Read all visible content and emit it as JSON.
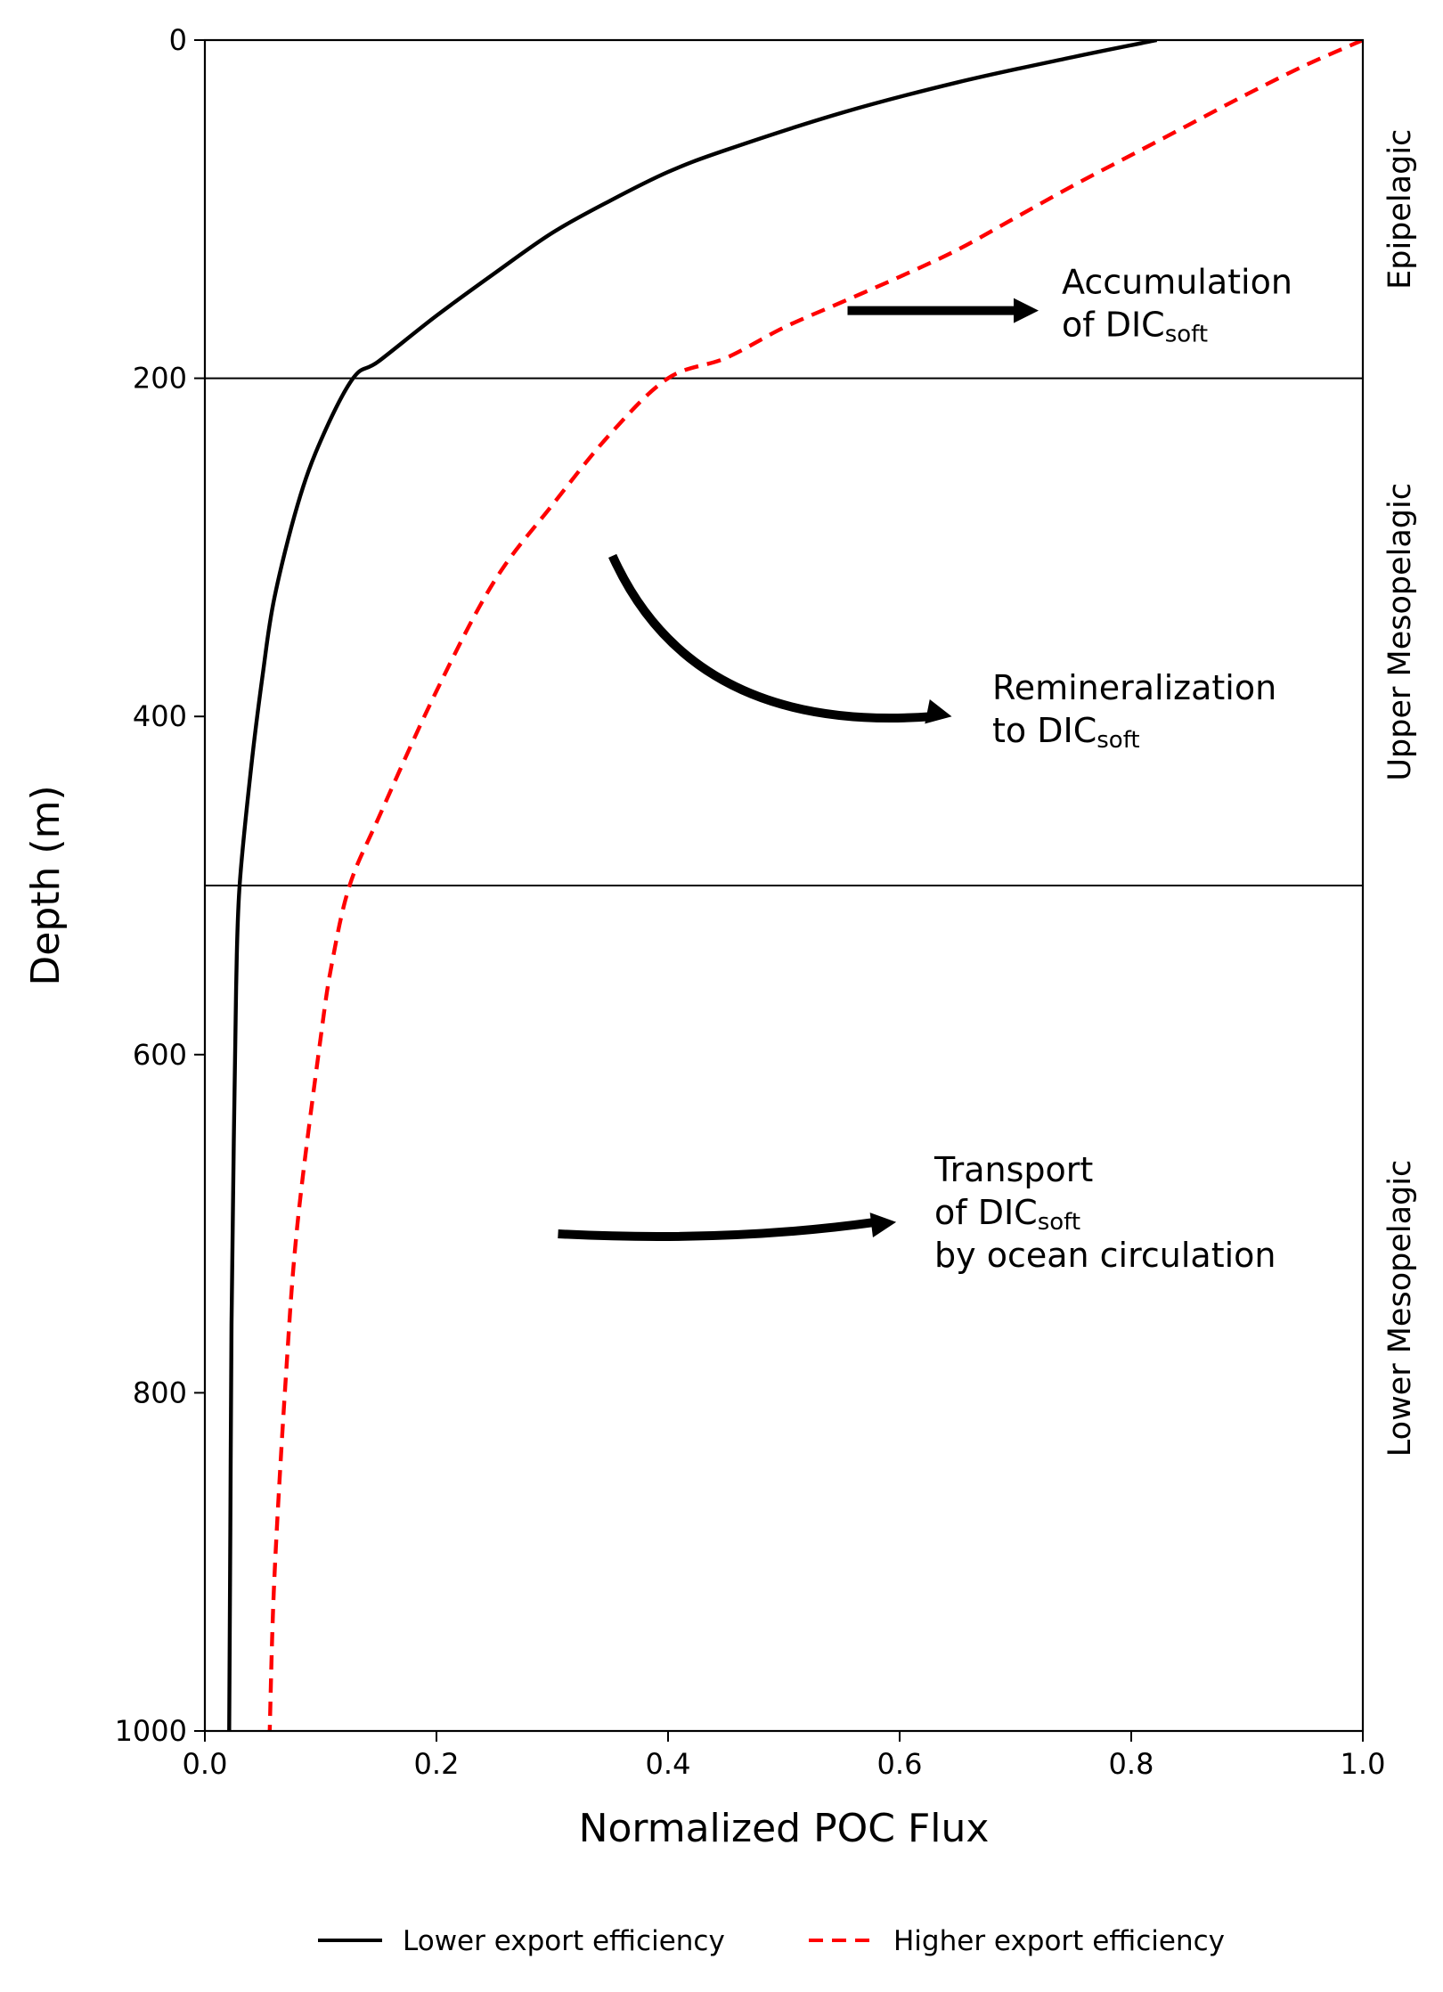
{
  "chart_data": {
    "type": "line",
    "xlabel": "Normalized POC Flux",
    "ylabel": "Depth (m)",
    "xlim": [
      0.0,
      1.0
    ],
    "ylim": [
      1000,
      0
    ],
    "y_inverted": true,
    "grid": false,
    "x_ticks": [
      "0.0",
      "0.2",
      "0.4",
      "0.6",
      "0.8",
      "1.0"
    ],
    "y_ticks": [
      "0",
      "200",
      "400",
      "600",
      "800",
      "1000"
    ],
    "series": [
      {
        "name": "Lower export efficiency",
        "color": "#000000",
        "style": "solid",
        "points": [
          [
            0.822,
            0
          ],
          [
            0.75,
            10
          ],
          [
            0.65,
            25
          ],
          [
            0.55,
            43
          ],
          [
            0.45,
            65
          ],
          [
            0.4,
            78
          ],
          [
            0.35,
            95
          ],
          [
            0.3,
            114
          ],
          [
            0.25,
            138
          ],
          [
            0.2,
            163
          ],
          [
            0.15,
            190
          ],
          [
            0.128,
            200
          ],
          [
            0.1,
            237
          ],
          [
            0.08,
            275
          ],
          [
            0.06,
            330
          ],
          [
            0.05,
            375
          ],
          [
            0.04,
            430
          ],
          [
            0.03,
            500
          ],
          [
            0.027,
            560
          ],
          [
            0.025,
            650
          ],
          [
            0.023,
            760
          ],
          [
            0.022,
            880
          ],
          [
            0.021,
            1000
          ]
        ]
      },
      {
        "name": "Higher export efficiency",
        "color": "#ff0000",
        "style": "dashed",
        "points": [
          [
            1.0,
            0
          ],
          [
            0.95,
            15
          ],
          [
            0.9,
            32
          ],
          [
            0.85,
            50
          ],
          [
            0.8,
            68
          ],
          [
            0.75,
            86
          ],
          [
            0.7,
            105
          ],
          [
            0.65,
            124
          ],
          [
            0.6,
            140
          ],
          [
            0.55,
            155
          ],
          [
            0.5,
            170
          ],
          [
            0.45,
            188
          ],
          [
            0.4,
            200
          ],
          [
            0.35,
            233
          ],
          [
            0.3,
            275
          ],
          [
            0.25,
            320
          ],
          [
            0.2,
            385
          ],
          [
            0.15,
            460
          ],
          [
            0.125,
            500
          ],
          [
            0.11,
            545
          ],
          [
            0.1,
            590
          ],
          [
            0.08,
            700
          ],
          [
            0.07,
            790
          ],
          [
            0.06,
            910
          ],
          [
            0.056,
            1000
          ]
        ]
      }
    ],
    "hlines": [
      200,
      500
    ],
    "zones": [
      {
        "label": "Epipelagic",
        "from": 0,
        "to": 200
      },
      {
        "label": "Upper Mesopelagic",
        "from": 200,
        "to": 500
      },
      {
        "label": "Lower Mesopelagic",
        "from": 500,
        "to": 1000
      }
    ],
    "annotations": [
      {
        "id": "accumulation",
        "lines": [
          "Accumulation",
          "of DIC"
        ],
        "subscript": "soft",
        "text_at": [
          0.74,
          150
        ],
        "arrow": {
          "from": [
            0.555,
            160
          ],
          "to": [
            0.72,
            160
          ],
          "curve": 0
        }
      },
      {
        "id": "remineralization",
        "lines": [
          "Remineralization",
          "to DIC"
        ],
        "subscript": "soft",
        "text_at": [
          0.68,
          390
        ],
        "arrow": {
          "from": [
            0.352,
            305
          ],
          "to": [
            0.645,
            400
          ],
          "curve": 1
        }
      },
      {
        "id": "transport",
        "lines": [
          "Transport",
          "of DIC",
          "by ocean circulation"
        ],
        "subscript": "soft",
        "subscript_line": 1,
        "text_at": [
          0.63,
          675
        ],
        "arrow": {
          "from": [
            0.305,
            706
          ],
          "to": [
            0.597,
            699
          ],
          "curve": 2
        }
      }
    ],
    "legend": {
      "position": "bottom-center",
      "entries": [
        "Lower export efficiency",
        "Higher export efficiency"
      ]
    }
  }
}
